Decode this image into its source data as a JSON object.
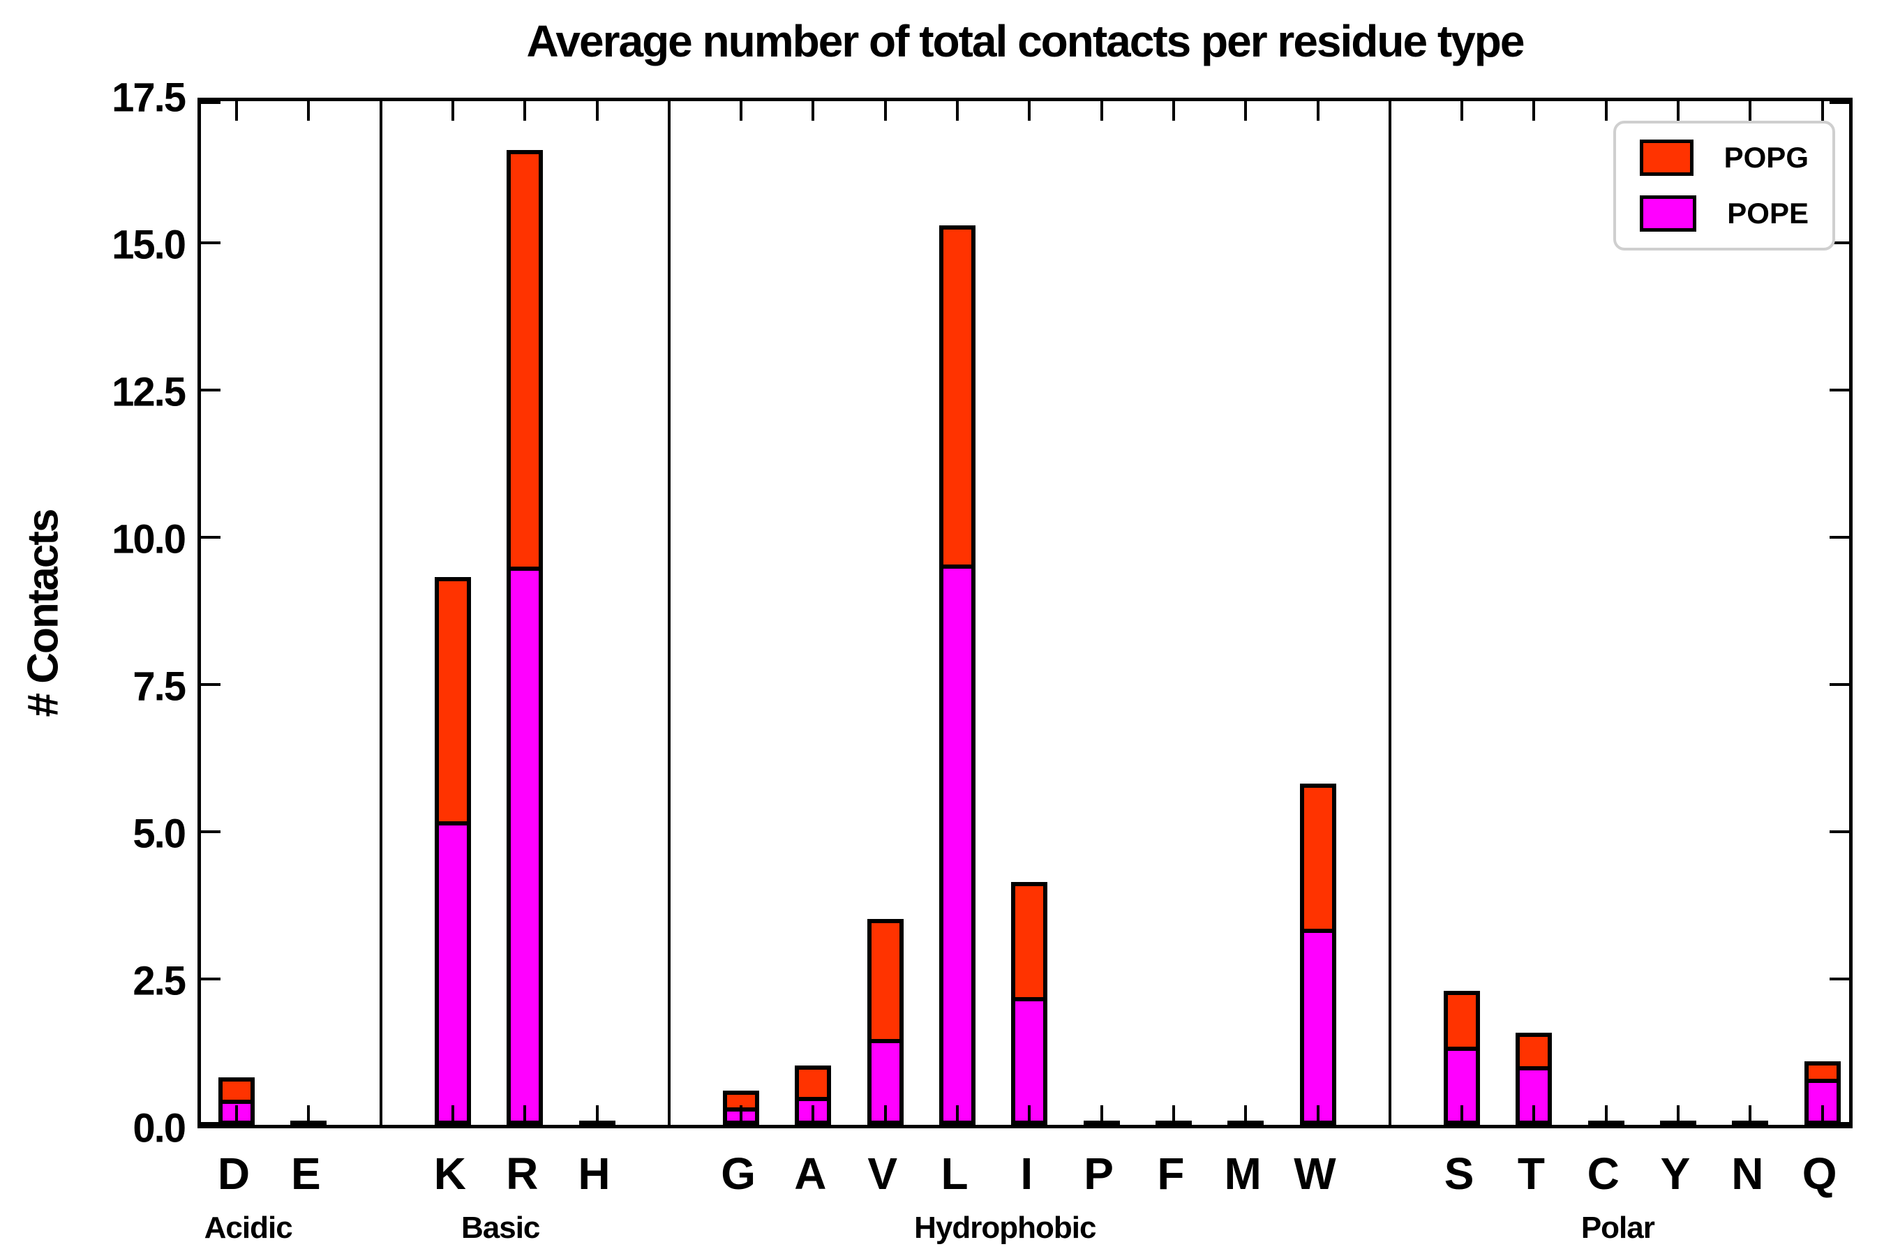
{
  "title": "Average number of total contacts per residue type",
  "y_axis": {
    "label": "# Contacts",
    "tick_labels": [
      "0.0",
      "2.5",
      "5.0",
      "7.5",
      "10.0",
      "12.5",
      "15.0",
      "17.5"
    ],
    "tick_values": [
      0.0,
      2.5,
      5.0,
      7.5,
      10.0,
      12.5,
      15.0,
      17.5
    ]
  },
  "legend": {
    "entries": [
      {
        "label": "POPG",
        "color": "#FF3300"
      },
      {
        "label": "POPE",
        "color": "#FF00FF"
      }
    ]
  },
  "colors": {
    "popg": "#FF3300",
    "pope": "#FF00FF",
    "bar_edge": "#000000",
    "legend_border": "#cfcfcf",
    "background": "#ffffff"
  },
  "chart_data": {
    "type": "bar",
    "stacked": true,
    "title": "Average number of total contacts per residue type",
    "xlabel": "",
    "ylabel": "# Contacts",
    "ylim": [
      0,
      17.5
    ],
    "yticks": [
      0.0,
      2.5,
      5.0,
      7.5,
      10.0,
      12.5,
      15.0,
      17.5
    ],
    "grid": false,
    "legend_position": "upper right",
    "categories": [
      "D",
      "E",
      "K",
      "R",
      "H",
      "G",
      "A",
      "V",
      "L",
      "I",
      "P",
      "F",
      "M",
      "W",
      "S",
      "T",
      "C",
      "Y",
      "N",
      "Q"
    ],
    "groups": [
      {
        "label": "Acidic",
        "categories": [
          "D",
          "E"
        ]
      },
      {
        "label": "Basic",
        "categories": [
          "K",
          "R",
          "H"
        ]
      },
      {
        "label": "Hydrophobic",
        "categories": [
          "G",
          "A",
          "V",
          "L",
          "I",
          "P",
          "F",
          "M",
          "W"
        ]
      },
      {
        "label": "Polar",
        "categories": [
          "S",
          "T",
          "C",
          "Y",
          "N",
          "Q"
        ]
      }
    ],
    "series": [
      {
        "name": "POPE",
        "color": "#FF00FF",
        "values": [
          0.35,
          0.01,
          5.08,
          9.41,
          0.01,
          0.23,
          0.4,
          1.39,
          9.44,
          2.1,
          0.01,
          0.02,
          0.01,
          3.26,
          1.26,
          0.93,
          0.01,
          0.01,
          0.01,
          0.71
        ]
      },
      {
        "name": "POPG",
        "color": "#FF3300",
        "values": [
          0.45,
          0.01,
          4.22,
          7.15,
          0.01,
          0.35,
          0.6,
          2.11,
          5.83,
          2.03,
          0.01,
          0.01,
          0.01,
          2.54,
          1.02,
          0.64,
          0.01,
          0.01,
          0.01,
          0.37
        ]
      }
    ],
    "totals": [
      0.8,
      0.02,
      9.3,
      16.56,
      0.02,
      0.58,
      1.0,
      3.5,
      15.27,
      4.13,
      0.02,
      0.03,
      0.02,
      5.8,
      2.28,
      1.57,
      0.02,
      0.02,
      0.02,
      1.08
    ]
  }
}
